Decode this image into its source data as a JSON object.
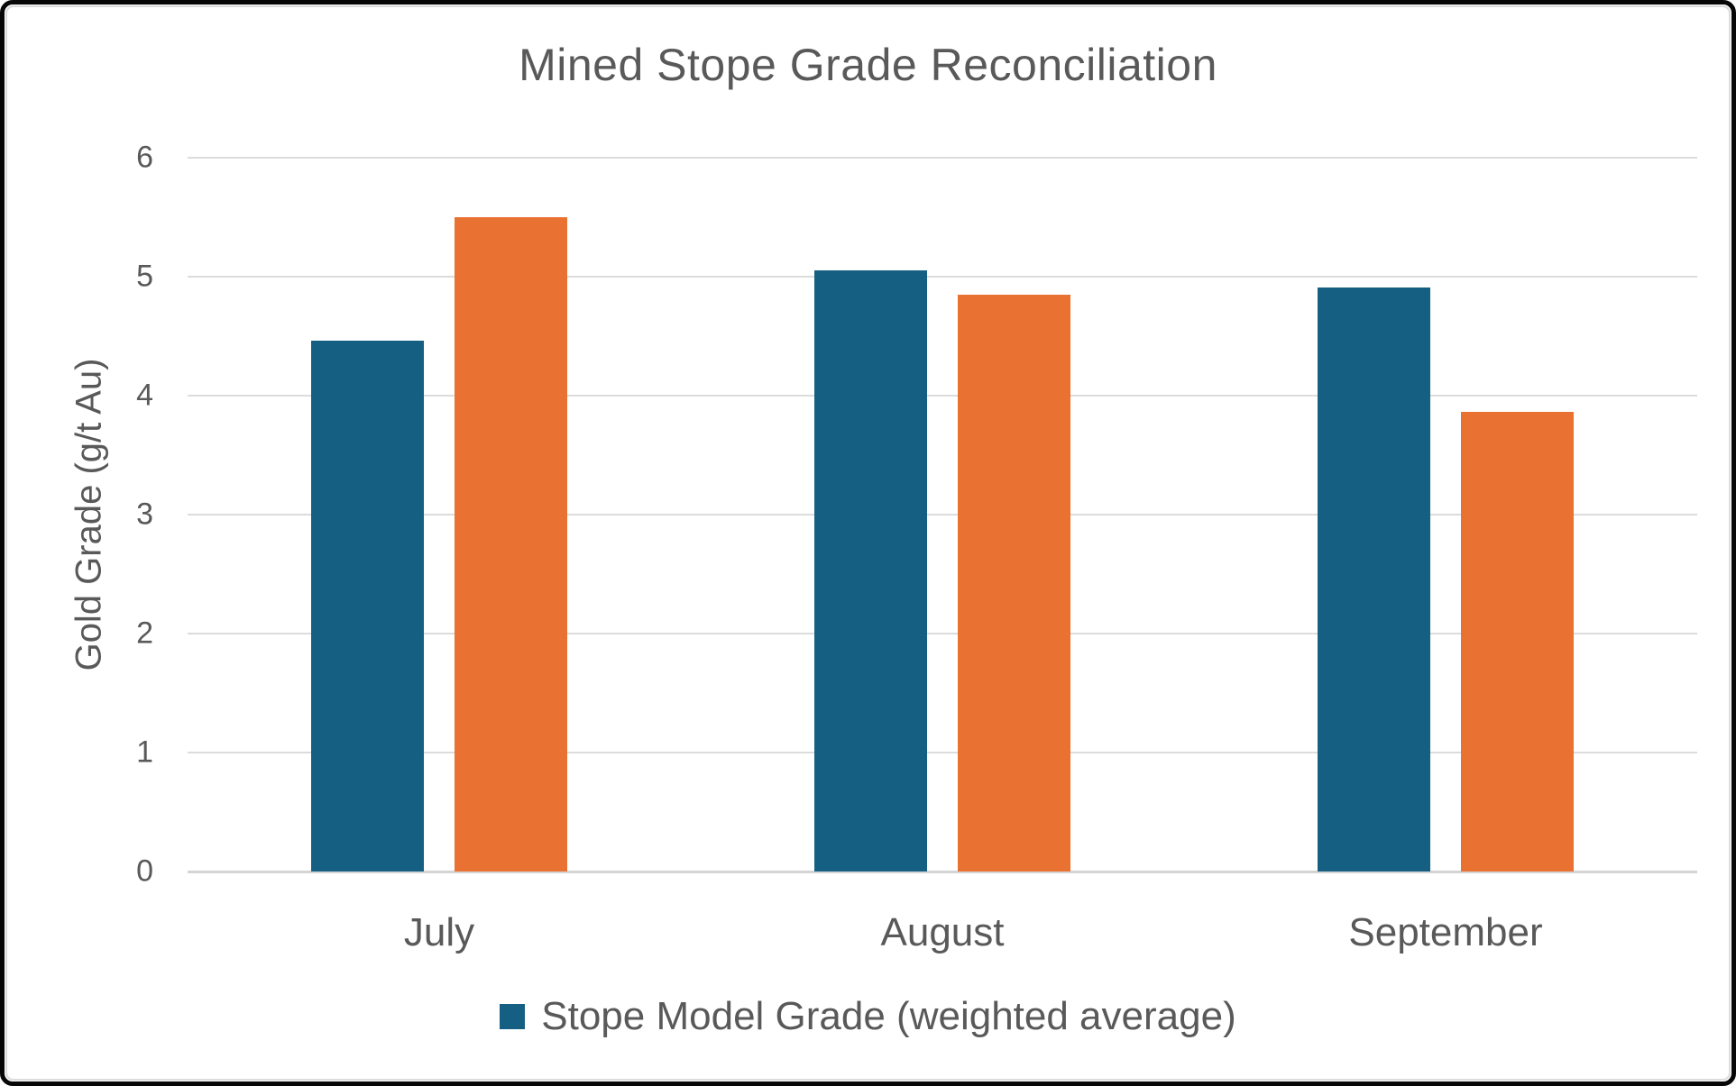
{
  "chart_data": {
    "type": "bar",
    "title": "Mined Stope Grade Reconciliation",
    "xlabel": "",
    "ylabel": "Gold Grade (g/t Au)",
    "categories": [
      "July",
      "August",
      "September"
    ],
    "series": [
      {
        "name": "Stope Model Grade (weighted average)",
        "color": "#156082",
        "values": [
          4.46,
          5.05,
          4.91
        ]
      },
      {
        "name": "",
        "color": "#E97132",
        "values": [
          5.5,
          4.85,
          3.86
        ]
      }
    ],
    "ylim": [
      0,
      6
    ],
    "yticks": [
      0,
      1,
      2,
      3,
      4,
      5,
      6
    ],
    "grid": true,
    "legend_position": "bottom",
    "visible_legend_entries": [
      "Stope Model Grade (weighted average)"
    ]
  },
  "colors": {
    "text": "#595959",
    "gridline": "#dcdcdc",
    "background": "#ffffff",
    "frame_border": "#070707"
  }
}
